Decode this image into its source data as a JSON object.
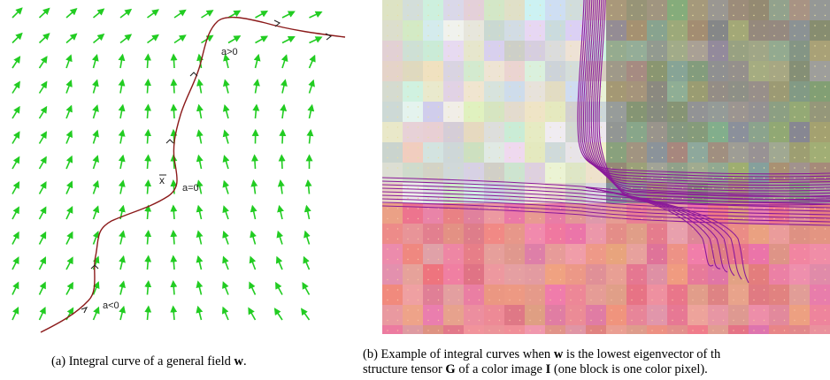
{
  "figure_a": {
    "labels": {
      "a_pos": "a>0",
      "a_zero": "a=0",
      "a_neg": "a<0",
      "point": "x"
    },
    "arrow_color": "#22cc22",
    "curve_color": "#8b1a1a"
  },
  "figure_b": {
    "curve_color": "#8a1a9a",
    "top_left_tone": "light pastel",
    "top_right_tone": "muted olive/grey",
    "bottom_tone": "salmon/pink"
  },
  "captions": {
    "a": {
      "prefix": "(a) Integral curve of a general field ",
      "w": "w",
      "suffix": "."
    },
    "b": {
      "line1_prefix": "(b) Example of integral curves when ",
      "w": "w",
      "line1_suffix": " is the lowest eigenvector of th",
      "line2_prefix": "structure tensor ",
      "G": "G",
      "line2_mid": " of a color image ",
      "I": "I",
      "line2_suffix": " (one block is one color pixel)."
    }
  }
}
